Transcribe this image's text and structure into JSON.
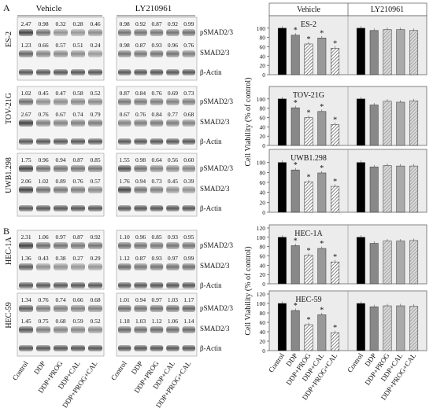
{
  "panels": [
    "A",
    "B"
  ],
  "groups": {
    "left": "Vehicle",
    "right": "LY210961"
  },
  "blot_labels": [
    "pSMAD2/3",
    "SMAD2/3",
    "β-Actin"
  ],
  "conditions": [
    "Control",
    "DDP",
    "DDP+PROG",
    "DDP+CAL",
    "DDP+PROG+CAL"
  ],
  "blots": [
    {
      "cell": "ES-2",
      "pSMAD_vehicle": [
        "2.47",
        "0.98",
        "0.32",
        "0.28",
        "0.46"
      ],
      "pSMAD_ly": [
        "0.98",
        "0.92",
        "0.87",
        "0.92",
        "0.99"
      ],
      "SMAD_vehicle": [
        "1.23",
        "0.66",
        "0.57",
        "0.51",
        "0.24"
      ],
      "SMAD_ly": [
        "0.98",
        "0.87",
        "0.93",
        "0.96",
        "0.76"
      ]
    },
    {
      "cell": "TOV-21G",
      "pSMAD_vehicle": [
        "1.02",
        "0.45",
        "0.47",
        "0.58",
        "0.52"
      ],
      "pSMAD_ly": [
        "0.87",
        "0.84",
        "0.76",
        "0.69",
        "0.73"
      ],
      "SMAD_vehicle": [
        "2.67",
        "0.76",
        "0.67",
        "0.74",
        "0.79"
      ],
      "SMAD_ly": [
        "0.67",
        "0.76",
        "0.84",
        "0.77",
        "0.68"
      ]
    },
    {
      "cell": "UWB1.298",
      "pSMAD_vehicle": [
        "1.75",
        "0.96",
        "0.94",
        "0.87",
        "0.85"
      ],
      "pSMAD_ly": [
        "1.55",
        "0.98",
        "0.64",
        "0.56",
        "0.60"
      ],
      "SMAD_vehicle": [
        "2.06",
        "1.02",
        "0.89",
        "0.76",
        "0.57"
      ],
      "SMAD_ly": [
        "1.76",
        "0.94",
        "0.73",
        "0.45",
        "0.39"
      ]
    },
    {
      "cell": "HEC-1A",
      "pSMAD_vehicle": [
        "2.31",
        "1.06",
        "0.97",
        "0.87",
        "0.92"
      ],
      "pSMAD_ly": [
        "1.10",
        "0.96",
        "0.85",
        "0.93",
        "0.95"
      ],
      "SMAD_vehicle": [
        "1.36",
        "0.43",
        "0.38",
        "0.27",
        "0.29"
      ],
      "SMAD_ly": [
        "1.12",
        "0.87",
        "0.93",
        "0.97",
        "0.99"
      ]
    },
    {
      "cell": "HEC-59",
      "pSMAD_vehicle": [
        "1.34",
        "0.76",
        "0.74",
        "0.66",
        "0.68"
      ],
      "pSMAD_ly": [
        "1.01",
        "0.94",
        "0.97",
        "1.03",
        "1.17"
      ],
      "SMAD_vehicle": [
        "1.45",
        "0.75",
        "0.68",
        "0.59",
        "0.52"
      ],
      "SMAD_ly": [
        "1.18",
        "1.03",
        "1.12",
        "1.06",
        "1.14"
      ]
    }
  ],
  "chart_header": {
    "left": "Vehicle",
    "right": "LY210961"
  },
  "chart_ylabel_a": "Cell Viability (% of control)",
  "chart_ylabel_b": "Cell Viability (% of control)",
  "chart_data": [
    {
      "type": "bar",
      "title": "ES-2",
      "ylim": [
        0,
        120
      ],
      "yticks": [
        0,
        20,
        40,
        60,
        80,
        100
      ],
      "categories": [
        "Control",
        "DDP",
        "DDP+PROG",
        "DDP+CAL",
        "DDP+PROG+CAL"
      ],
      "series": [
        {
          "name": "Vehicle",
          "values": [
            100,
            85,
            66,
            79,
            57
          ],
          "significant": [
            false,
            true,
            true,
            true,
            true
          ]
        },
        {
          "name": "LY210961",
          "values": [
            100,
            95,
            97,
            97,
            95
          ],
          "significant": [
            false,
            false,
            false,
            false,
            false
          ]
        }
      ]
    },
    {
      "type": "bar",
      "title": "TOV-21G",
      "ylim": [
        0,
        120
      ],
      "yticks": [
        0,
        20,
        40,
        60,
        80,
        100
      ],
      "categories": [
        "Control",
        "DDP",
        "DDP+PROG",
        "DDP+CAL",
        "DDP+PROG+CAL"
      ],
      "series": [
        {
          "name": "Vehicle",
          "values": [
            100,
            81,
            60,
            73,
            45
          ],
          "significant": [
            false,
            true,
            true,
            true,
            true
          ]
        },
        {
          "name": "LY210961",
          "values": [
            100,
            87,
            95,
            93,
            96
          ],
          "significant": [
            false,
            false,
            false,
            false,
            false
          ]
        }
      ]
    },
    {
      "type": "bar",
      "title": "UWB1.298",
      "ylim": [
        0,
        120
      ],
      "yticks": [
        0,
        20,
        40,
        60,
        80,
        100
      ],
      "categories": [
        "Control",
        "DDP",
        "DDP+PROG",
        "DDP+CAL",
        "DDP+PROG+CAL"
      ],
      "series": [
        {
          "name": "Vehicle",
          "values": [
            100,
            85,
            61,
            79,
            52
          ],
          "significant": [
            false,
            true,
            true,
            true,
            true
          ]
        },
        {
          "name": "LY210961",
          "values": [
            100,
            91,
            94,
            93,
            93
          ],
          "significant": [
            false,
            false,
            false,
            false,
            false
          ]
        }
      ]
    },
    {
      "type": "bar",
      "title": "HEC-1A",
      "ylim": [
        0,
        120
      ],
      "yticks": [
        0,
        20,
        40,
        60,
        80,
        100,
        120
      ],
      "categories": [
        "Control",
        "DDP",
        "DDP+PROG",
        "DDP+CAL",
        "DDP+PROG+CAL"
      ],
      "series": [
        {
          "name": "Vehicle",
          "values": [
            100,
            82,
            61,
            76,
            47
          ],
          "significant": [
            false,
            true,
            true,
            true,
            true
          ]
        },
        {
          "name": "LY210961",
          "values": [
            100,
            87,
            92,
            92,
            93
          ],
          "significant": [
            false,
            false,
            false,
            false,
            false
          ]
        }
      ]
    },
    {
      "type": "bar",
      "title": "HEC-59",
      "ylim": [
        0,
        120
      ],
      "yticks": [
        0,
        20,
        40,
        60,
        80,
        100,
        120
      ],
      "categories": [
        "Control",
        "DDP",
        "DDP+PROG",
        "DDP+CAL",
        "DDP+PROG+CAL"
      ],
      "series": [
        {
          "name": "Vehicle",
          "values": [
            100,
            85,
            55,
            76,
            38
          ],
          "significant": [
            false,
            true,
            true,
            true,
            true
          ]
        },
        {
          "name": "LY210961",
          "values": [
            100,
            93,
            95,
            95,
            94
          ],
          "significant": [
            false,
            false,
            false,
            false,
            false
          ]
        }
      ]
    }
  ]
}
